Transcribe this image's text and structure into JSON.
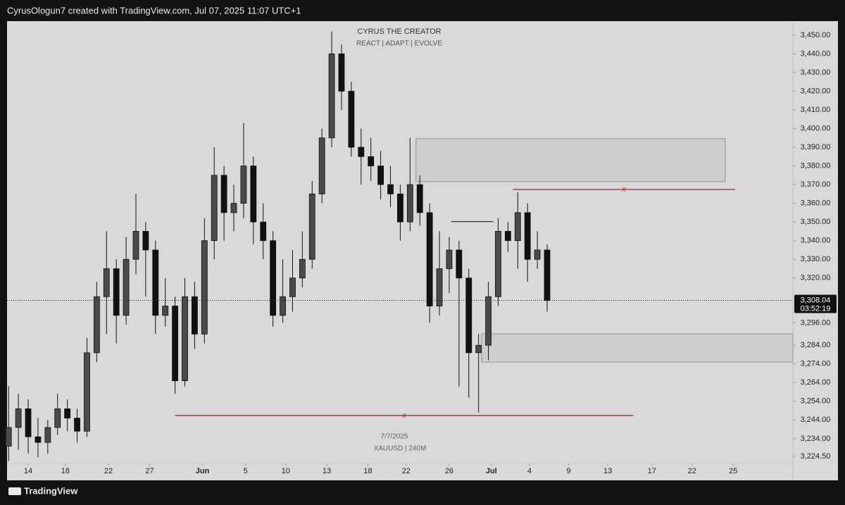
{
  "header": {
    "text": "CyrusOlogun7 created with TradingView.com, Jul 07, 2025 11:07 UTC+1"
  },
  "footer": {
    "brand": "TradingView"
  },
  "chart_data": {
    "type": "candlestick",
    "title": "CYRUS THE CREATOR",
    "subtitle": "REACT | ADAPT | EVOLVE",
    "annotations": [
      "7/7/2025",
      "XAUUSD | 240M"
    ],
    "x": [
      -2,
      -1,
      0,
      1,
      2,
      3,
      4,
      5,
      6,
      7,
      8,
      9,
      10,
      11,
      12,
      13,
      14,
      15,
      16,
      17,
      18,
      19,
      20,
      21,
      22,
      23,
      24,
      25,
      26,
      27,
      28,
      29,
      30,
      31,
      32,
      33,
      34,
      35,
      36,
      37,
      38,
      39,
      40,
      41,
      42,
      43,
      44,
      45,
      46,
      47,
      48,
      49,
      50,
      51,
      52,
      53
    ],
    "open": [
      3230,
      3240,
      3250,
      3235,
      3232,
      3240,
      3250,
      3245,
      3238,
      3280,
      3310,
      3325,
      3300,
      3330,
      3345,
      3335,
      3300,
      3305,
      3265,
      3310,
      3290,
      3340,
      3375,
      3355,
      3360,
      3380,
      3350,
      3340,
      3300,
      3310,
      3320,
      3330,
      3365,
      3395,
      3440,
      3420,
      3390,
      3385,
      3380,
      3370,
      3365,
      3350,
      3370,
      3355,
      3305,
      3325,
      3335,
      3320,
      3280,
      3284,
      3310,
      3345,
      3340,
      3355,
      3330,
      3335
    ],
    "high": [
      3262,
      3258,
      3255,
      3245,
      3244,
      3258,
      3255,
      3250,
      3288,
      3318,
      3345,
      3330,
      3342,
      3365,
      3350,
      3340,
      3320,
      3310,
      3320,
      3318,
      3352,
      3390,
      3380,
      3370,
      3403,
      3385,
      3360,
      3345,
      3330,
      3335,
      3345,
      3372,
      3400,
      3452,
      3445,
      3425,
      3400,
      3395,
      3388,
      3380,
      3370,
      3395,
      3375,
      3360,
      3345,
      3342,
      3340,
      3325,
      3290,
      3318,
      3352,
      3350,
      3366,
      3360,
      3345,
      3338
    ],
    "low": [
      3222,
      3228,
      3226,
      3224,
      3226,
      3236,
      3238,
      3232,
      3235,
      3275,
      3290,
      3285,
      3295,
      3322,
      3310,
      3290,
      3294,
      3258,
      3262,
      3282,
      3285,
      3330,
      3340,
      3345,
      3352,
      3338,
      3330,
      3294,
      3296,
      3302,
      3315,
      3325,
      3360,
      3390,
      3410,
      3385,
      3370,
      3372,
      3362,
      3358,
      3340,
      3345,
      3348,
      3296,
      3300,
      3312,
      3262,
      3256,
      3248,
      3276,
      3305,
      3334,
      3325,
      3318,
      3325,
      3302
    ],
    "close": [
      3240,
      3250,
      3235,
      3232,
      3240,
      3250,
      3245,
      3238,
      3280,
      3310,
      3325,
      3300,
      3330,
      3345,
      3335,
      3300,
      3305,
      3265,
      3310,
      3290,
      3340,
      3375,
      3355,
      3360,
      3380,
      3350,
      3340,
      3300,
      3310,
      3320,
      3330,
      3365,
      3395,
      3440,
      3420,
      3390,
      3385,
      3380,
      3370,
      3365,
      3350,
      3370,
      3355,
      3305,
      3325,
      3335,
      3320,
      3280,
      3284,
      3310,
      3345,
      3340,
      3355,
      3330,
      3335,
      3308.04
    ],
    "up_color": "#4a4a4a",
    "down_color": "#111111",
    "xlim": [
      -2.16,
      78.1
    ],
    "xticks": [
      {
        "value": 0,
        "label": "14"
      },
      {
        "value": 3.8,
        "label": "18"
      },
      {
        "value": 8.2,
        "label": "22"
      },
      {
        "value": 12.4,
        "label": "27"
      },
      {
        "value": 17.8,
        "label": "Jun"
      },
      {
        "value": 22.2,
        "label": "5"
      },
      {
        "value": 26.3,
        "label": "10"
      },
      {
        "value": 30.5,
        "label": "13"
      },
      {
        "value": 34.7,
        "label": "18"
      },
      {
        "value": 38.6,
        "label": "22"
      },
      {
        "value": 43,
        "label": "26"
      },
      {
        "value": 47.3,
        "label": "Jul"
      },
      {
        "value": 51.2,
        "label": "4"
      },
      {
        "value": 55.2,
        "label": "9"
      },
      {
        "value": 59.2,
        "label": "13"
      },
      {
        "value": 63.7,
        "label": "17"
      },
      {
        "value": 67.8,
        "label": "22"
      },
      {
        "value": 72,
        "label": "25"
      }
    ],
    "ylim": [
      3211.7,
      3457.5
    ],
    "yticks": [
      {
        "value": 3450,
        "label": "3,450.00"
      },
      {
        "value": 3440,
        "label": "3,440.00"
      },
      {
        "value": 3430,
        "label": "3,430.00"
      },
      {
        "value": 3420,
        "label": "3,420.00"
      },
      {
        "value": 3410,
        "label": "3,410.00"
      },
      {
        "value": 3400,
        "label": "3,400.00"
      },
      {
        "value": 3390,
        "label": "3,390.00"
      },
      {
        "value": 3380,
        "label": "3,380.00"
      },
      {
        "value": 3370,
        "label": "3,370.00"
      },
      {
        "value": 3360,
        "label": "3,360.00"
      },
      {
        "value": 3350,
        "label": "3,350.00"
      },
      {
        "value": 3340,
        "label": "3,340.00"
      },
      {
        "value": 3330,
        "label": "3,330.00"
      },
      {
        "value": 3320,
        "label": "3,320.00"
      },
      {
        "value": 3296,
        "label": "3,296.00"
      },
      {
        "value": 3284,
        "label": "3,284.00"
      },
      {
        "value": 3274,
        "label": "3,274.00"
      },
      {
        "value": 3264,
        "label": "3,264.00"
      },
      {
        "value": 3254,
        "label": "3,254.00"
      },
      {
        "value": 3244,
        "label": "3,244.00"
      },
      {
        "value": 3234,
        "label": "3,234.00"
      },
      {
        "value": 3224.5,
        "label": "3,224.50"
      }
    ],
    "last_price": {
      "value": 3308.04,
      "label": "3,308.04"
    },
    "countdown": "03:52:19",
    "zones": [
      {
        "x": [
          39.6,
          71.2
        ],
        "y": [
          3371.6,
          3394.6
        ]
      },
      {
        "x": [
          46.3,
          78.1
        ],
        "y": [
          3275.0,
          3290.1
        ]
      }
    ],
    "levels": [
      {
        "x": [
          49.5,
          72.2
        ],
        "value": 3367.4,
        "label": "x",
        "color": "#9b2c3a"
      },
      {
        "x": [
          15,
          61.8
        ],
        "value": 3246.4,
        "label": "x",
        "color": "#9b2c3a"
      }
    ],
    "structure": {
      "x": [
        43.2,
        47.5
      ],
      "value": 3350.2,
      "color": "#333333"
    }
  }
}
